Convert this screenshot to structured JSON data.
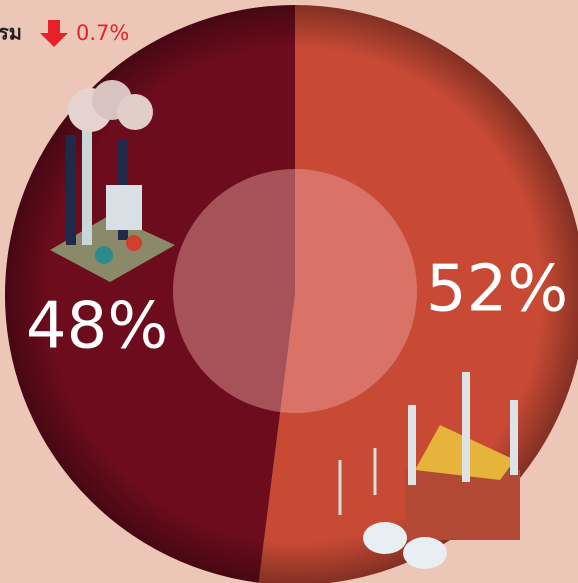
{
  "chart_data": {
    "type": "pie",
    "values": [
      52,
      48
    ],
    "value_labels": [
      "52%",
      "48%"
    ],
    "colors": [
      "#c84a35",
      "#6c0c1c"
    ],
    "annotations": [
      "รม",
      "0.7%"
    ]
  }
}
